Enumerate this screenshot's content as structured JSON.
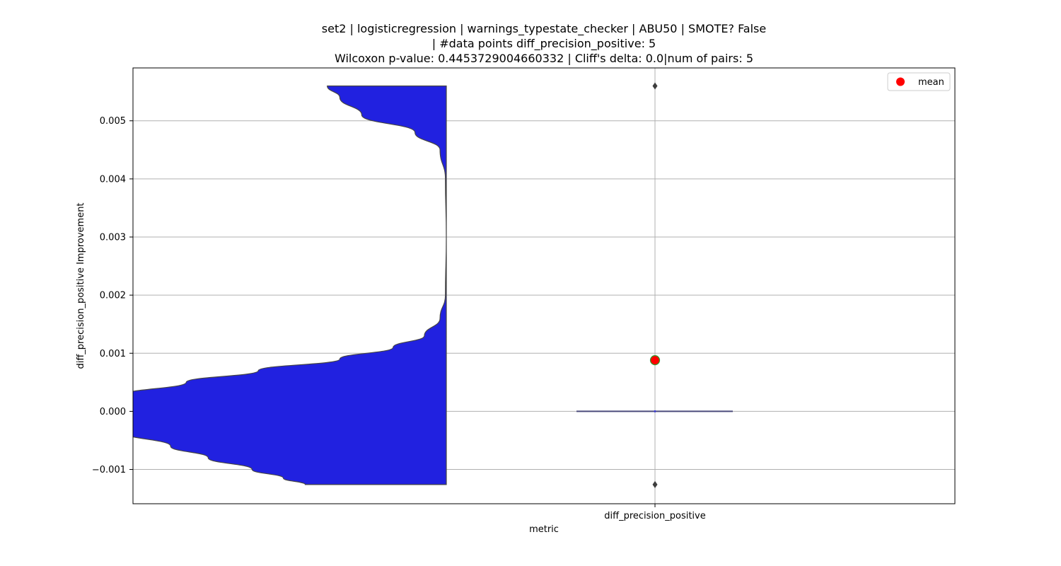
{
  "chart_data": {
    "type": "violin",
    "title_lines": [
      "set2 | logisticregression | warnings_typestate_checker | ABU50 | SMOTE? False",
      "| #data points diff_precision_positive: 5",
      "Wilcoxon p-value: 0.4453729004660332 | Cliff's delta: 0.0|num of pairs: 5"
    ],
    "xlabel": "metric",
    "ylabel": "diff_precision_positive Improvement",
    "categories": [
      "diff_precision_positive"
    ],
    "ylim": [
      -0.00159,
      0.00591
    ],
    "yticks": [
      -0.001,
      0.0,
      0.001,
      0.002,
      0.003,
      0.004,
      0.005
    ],
    "ytick_labels": [
      "−0.001",
      "0.000",
      "0.001",
      "0.002",
      "0.003",
      "0.004",
      "0.005"
    ],
    "grid": true,
    "legend": {
      "position": "top-right",
      "entries": [
        {
          "label": "mean",
          "color": "#ff0000"
        }
      ]
    },
    "violin": {
      "color": "#2121e0",
      "edge_color": "#444444",
      "y_min": -0.00126,
      "y_max": 0.0056,
      "density_profile": [
        {
          "y": -0.00126,
          "w": 0.45
        },
        {
          "y": -0.00115,
          "w": 0.52
        },
        {
          "y": -0.001,
          "w": 0.62
        },
        {
          "y": -0.0008,
          "w": 0.76
        },
        {
          "y": -0.0006,
          "w": 0.88
        },
        {
          "y": -0.00036,
          "w": 1.03
        },
        {
          "y": 0.00028,
          "w": 1.03
        },
        {
          "y": 0.0005,
          "w": 0.83
        },
        {
          "y": 0.0007,
          "w": 0.6
        },
        {
          "y": 0.0009,
          "w": 0.34
        },
        {
          "y": 0.0011,
          "w": 0.17
        },
        {
          "y": 0.0013,
          "w": 0.07
        },
        {
          "y": 0.0016,
          "w": 0.02
        },
        {
          "y": 0.002,
          "w": 0.003
        },
        {
          "y": 0.003,
          "w": 0.0
        },
        {
          "y": 0.004,
          "w": 0.003
        },
        {
          "y": 0.0045,
          "w": 0.02
        },
        {
          "y": 0.0048,
          "w": 0.1
        },
        {
          "y": 0.0051,
          "w": 0.27
        },
        {
          "y": 0.0054,
          "w": 0.34
        },
        {
          "y": 0.0056,
          "w": 0.38
        }
      ]
    },
    "box": {
      "median": 0.0,
      "q1": 0.0,
      "q3": 0.0,
      "whisker_low": 0.0,
      "whisker_high": 0.0,
      "color": "#4a4a7a"
    },
    "outliers": [
      0.0056,
      -0.00126
    ],
    "mean": 0.00088,
    "mean_color": "#ff0000",
    "mean_edge_color": "#2e9e2e"
  }
}
